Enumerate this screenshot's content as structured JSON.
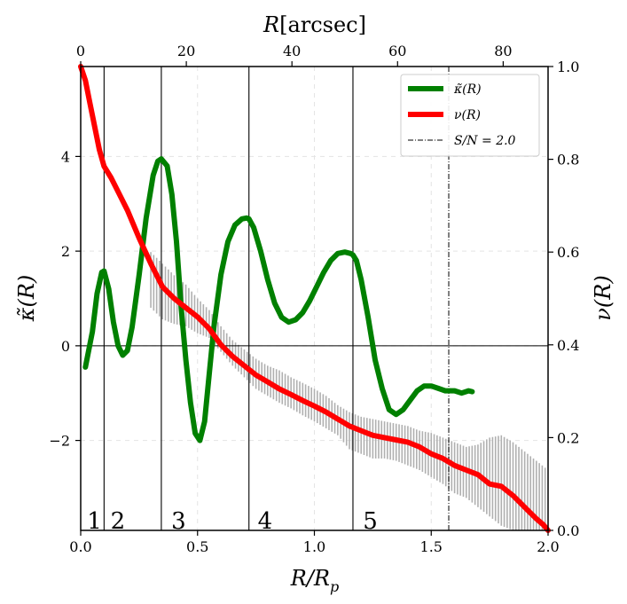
{
  "chart_data": {
    "type": "line",
    "x_label": "R/R_p",
    "x_label_parts": {
      "main": "R/R",
      "sub": "p"
    },
    "x_top_label": "R[arcsec]",
    "x_top_label_parts": {
      "var": "R",
      "unit": "[arcsec]"
    },
    "y_left_label": "κ̃(R)",
    "y_right_label": "ν(R)",
    "xlim": [
      0,
      2.0
    ],
    "ylim_left": [
      -3.9,
      5.9
    ],
    "ylim_right": [
      0.0,
      1.0
    ],
    "xlim_top": [
      0,
      88.5
    ],
    "x_ticks": [
      {
        "v": 0.0,
        "label": "0.0"
      },
      {
        "v": 0.5,
        "label": "0.5"
      },
      {
        "v": 1.0,
        "label": "1.0"
      },
      {
        "v": 1.5,
        "label": "1.5"
      },
      {
        "v": 2.0,
        "label": "2.0"
      }
    ],
    "x_top_ticks": [
      {
        "v": 0,
        "label": "0"
      },
      {
        "v": 20,
        "label": "20"
      },
      {
        "v": 40,
        "label": "40"
      },
      {
        "v": 60,
        "label": "60"
      },
      {
        "v": 80,
        "label": "80"
      }
    ],
    "y_left_ticks": [
      {
        "v": -2,
        "label": "−2"
      },
      {
        "v": 0,
        "label": "0"
      },
      {
        "v": 2,
        "label": "2"
      },
      {
        "v": 4,
        "label": "4"
      }
    ],
    "y_right_ticks": [
      {
        "v": 0.0,
        "label": "0.0"
      },
      {
        "v": 0.2,
        "label": "0.2"
      },
      {
        "v": 0.4,
        "label": "0.4"
      },
      {
        "v": 0.6,
        "label": "0.6"
      },
      {
        "v": 0.8,
        "label": "0.8"
      },
      {
        "v": 1.0,
        "label": "1.0"
      }
    ],
    "grid": true,
    "legend_position": "top-right",
    "legend": [
      {
        "label": "κ̃(R)",
        "color": "#008000",
        "style": "solid-thick"
      },
      {
        "label": "ν(R)",
        "color": "#ff0000",
        "style": "solid-thick"
      },
      {
        "label": "S/N = 2.0",
        "color": "#000000",
        "style": "dashdot"
      }
    ],
    "snr_line_x": 1.575,
    "region_lines_x": [
      0.1,
      0.345,
      0.72,
      1.165
    ],
    "region_labels": [
      {
        "x": 0.02,
        "text": "1"
      },
      {
        "x": 0.12,
        "text": "2"
      },
      {
        "x": 0.38,
        "text": "3"
      },
      {
        "x": 0.75,
        "text": "4"
      },
      {
        "x": 1.2,
        "text": "5"
      }
    ],
    "series": [
      {
        "name": "kappa",
        "axis": "left",
        "color": "#008000",
        "x": [
          0.02,
          0.05,
          0.07,
          0.09,
          0.1,
          0.12,
          0.14,
          0.16,
          0.18,
          0.2,
          0.22,
          0.25,
          0.28,
          0.31,
          0.33,
          0.345,
          0.37,
          0.39,
          0.41,
          0.43,
          0.45,
          0.47,
          0.49,
          0.51,
          0.53,
          0.55,
          0.57,
          0.6,
          0.63,
          0.66,
          0.69,
          0.71,
          0.72,
          0.74,
          0.77,
          0.8,
          0.83,
          0.86,
          0.89,
          0.92,
          0.95,
          0.98,
          1.01,
          1.04,
          1.07,
          1.1,
          1.13,
          1.155,
          1.165,
          1.18,
          1.2,
          1.23,
          1.26,
          1.29,
          1.32,
          1.35,
          1.38,
          1.41,
          1.44,
          1.47,
          1.5,
          1.53,
          1.56,
          1.6,
          1.63,
          1.66,
          1.675
        ],
        "y": [
          -0.45,
          0.3,
          1.1,
          1.55,
          1.58,
          1.2,
          0.5,
          0.0,
          -0.2,
          -0.1,
          0.4,
          1.5,
          2.7,
          3.6,
          3.9,
          3.95,
          3.8,
          3.2,
          2.2,
          0.8,
          -0.3,
          -1.2,
          -1.85,
          -2.0,
          -1.6,
          -0.6,
          0.4,
          1.5,
          2.2,
          2.55,
          2.68,
          2.7,
          2.68,
          2.5,
          2.0,
          1.4,
          0.9,
          0.6,
          0.5,
          0.55,
          0.7,
          0.95,
          1.25,
          1.55,
          1.8,
          1.95,
          1.98,
          1.95,
          1.92,
          1.8,
          1.4,
          0.6,
          -0.3,
          -0.9,
          -1.35,
          -1.45,
          -1.35,
          -1.15,
          -0.95,
          -0.85,
          -0.85,
          -0.9,
          -0.95,
          -0.95,
          -1.0,
          -0.95,
          -0.97
        ]
      },
      {
        "name": "nu",
        "axis": "right",
        "color": "#ff0000",
        "x": [
          0.0,
          0.02,
          0.04,
          0.06,
          0.08,
          0.1,
          0.13,
          0.16,
          0.2,
          0.25,
          0.3,
          0.35,
          0.4,
          0.45,
          0.5,
          0.55,
          0.6,
          0.65,
          0.7,
          0.75,
          0.8,
          0.85,
          0.9,
          0.95,
          1.0,
          1.05,
          1.1,
          1.15,
          1.2,
          1.25,
          1.3,
          1.35,
          1.4,
          1.45,
          1.5,
          1.55,
          1.6,
          1.65,
          1.7,
          1.75,
          1.8,
          1.85,
          1.88,
          1.92,
          1.95,
          1.98,
          2.0
        ],
        "y": [
          1.0,
          0.97,
          0.92,
          0.87,
          0.82,
          0.785,
          0.76,
          0.73,
          0.69,
          0.63,
          0.575,
          0.525,
          0.5,
          0.48,
          0.46,
          0.435,
          0.4,
          0.375,
          0.355,
          0.335,
          0.32,
          0.305,
          0.293,
          0.28,
          0.268,
          0.255,
          0.24,
          0.225,
          0.215,
          0.205,
          0.2,
          0.195,
          0.19,
          0.18,
          0.165,
          0.155,
          0.14,
          0.13,
          0.12,
          0.1,
          0.095,
          0.075,
          0.06,
          0.04,
          0.025,
          0.012,
          0.0
        ]
      }
    ],
    "error_band": {
      "axis": "right",
      "color": "#b0b0b0",
      "x": [
        0.3,
        0.35,
        0.4,
        0.45,
        0.5,
        0.55,
        0.6,
        0.65,
        0.7,
        0.75,
        0.8,
        0.85,
        0.9,
        0.95,
        1.0,
        1.05,
        1.1,
        1.15,
        1.2,
        1.25,
        1.3,
        1.35,
        1.4,
        1.45,
        1.5,
        1.55,
        1.6,
        1.65,
        1.7,
        1.75,
        1.8,
        1.85,
        1.9,
        1.95,
        2.0
      ],
      "lower": [
        0.48,
        0.455,
        0.445,
        0.44,
        0.425,
        0.415,
        0.385,
        0.355,
        0.33,
        0.305,
        0.29,
        0.275,
        0.263,
        0.248,
        0.235,
        0.22,
        0.205,
        0.175,
        0.165,
        0.155,
        0.155,
        0.15,
        0.14,
        0.13,
        0.115,
        0.1,
        0.08,
        0.07,
        0.05,
        0.03,
        0.01,
        0.0,
        0.0,
        0.0,
        0.0
      ],
      "upper": [
        0.6,
        0.575,
        0.55,
        0.53,
        0.5,
        0.475,
        0.44,
        0.41,
        0.39,
        0.37,
        0.355,
        0.345,
        0.33,
        0.318,
        0.305,
        0.29,
        0.27,
        0.255,
        0.245,
        0.24,
        0.235,
        0.23,
        0.225,
        0.215,
        0.21,
        0.2,
        0.19,
        0.18,
        0.185,
        0.2,
        0.205,
        0.19,
        0.17,
        0.15,
        0.13
      ]
    }
  }
}
